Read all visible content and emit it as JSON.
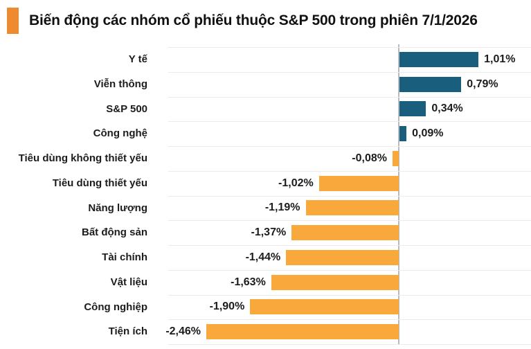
{
  "header": {
    "title": "Biến động các nhóm cổ phiếu thuộc S&P 500 trong phiên 7/1/2026",
    "bullet_color": "#ee8b2f"
  },
  "chart_data": {
    "type": "bar",
    "orientation": "horizontal",
    "title": "Biến động các nhóm cổ phiếu thuộc S&P 500 trong phiên 7/1/2026",
    "categories": [
      "Y tế",
      "Viễn thông",
      "S&P 500",
      "Công nghệ",
      "Tiêu dùng không thiết yếu",
      "Tiêu dùng thiết yếu",
      "Năng lượng",
      "Bất động sản",
      "Tài chính",
      "Vật liệu",
      "Công nghiệp",
      "Tiện ích"
    ],
    "values": [
      1.01,
      0.79,
      0.34,
      0.09,
      -0.08,
      -1.02,
      -1.19,
      -1.37,
      -1.44,
      -1.63,
      -1.9,
      -2.46
    ],
    "value_labels": [
      "1,01%",
      "0,79%",
      "0,34%",
      "0,09%",
      "-0,08%",
      "-1,02%",
      "-1,19%",
      "-1,37%",
      "-1,44%",
      "-1,63%",
      "-1,90%",
      "-2,46%"
    ],
    "colors": {
      "positive": "#1a5e7d",
      "negative": "#f9a83c",
      "axis": "#b3bcc2",
      "gridline": "#ebebeb",
      "text": "#1c1c1c"
    },
    "xlim": [
      -2.95,
      1.7
    ],
    "grid": "horizontal-row-separators",
    "legend": "none",
    "xlabel": "",
    "ylabel": ""
  }
}
